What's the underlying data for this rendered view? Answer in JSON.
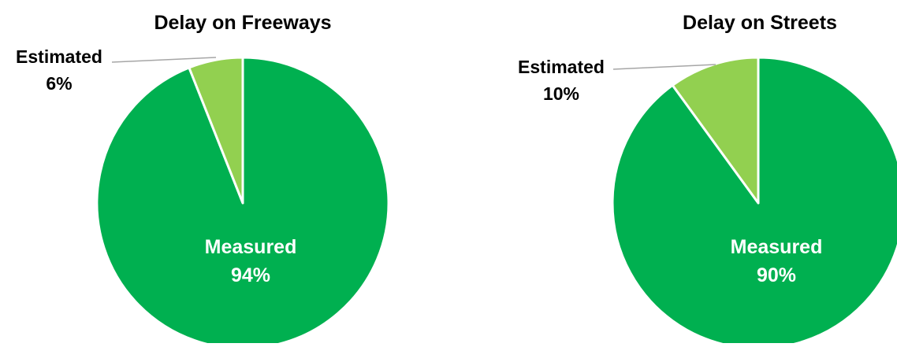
{
  "chart_data": [
    {
      "type": "pie",
      "title": "Delay on Freeways",
      "slices": [
        {
          "label": "Measured",
          "value": 94,
          "display": "94%",
          "color": "#00B050"
        },
        {
          "label": "Estimated",
          "value": 6,
          "display": "6%",
          "color": "#92D050"
        }
      ],
      "legend": "none"
    },
    {
      "type": "pie",
      "title": "Delay on Streets",
      "slices": [
        {
          "label": "Measured",
          "value": 90,
          "display": "90%",
          "color": "#00B050"
        },
        {
          "label": "Estimated",
          "value": 10,
          "display": "10%",
          "color": "#92D050"
        }
      ],
      "legend": "none"
    }
  ]
}
